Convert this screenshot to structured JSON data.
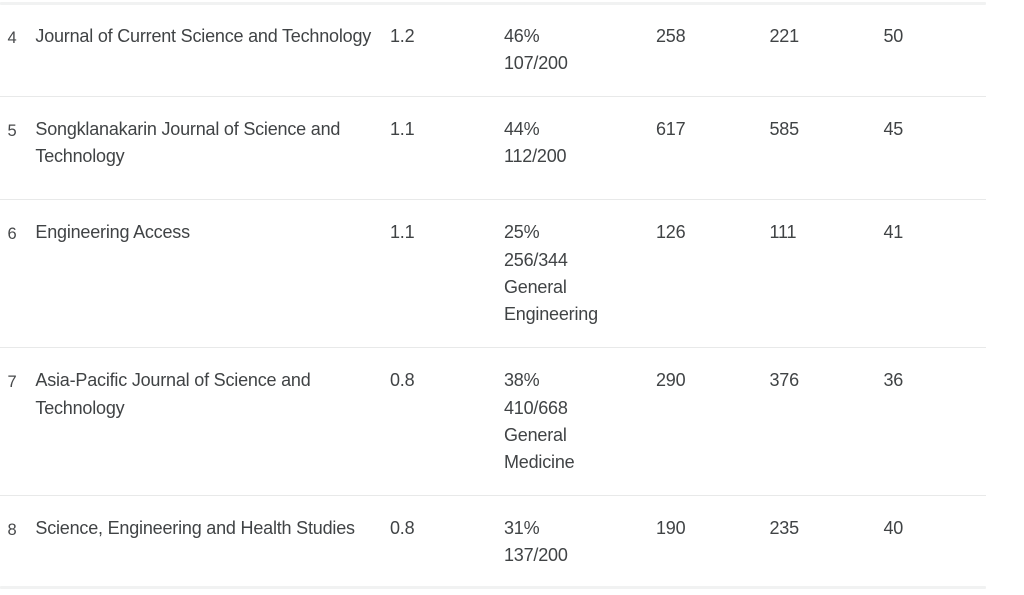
{
  "table": {
    "rows": [
      {
        "rank": "4",
        "title": "Journal of Current Science and Technology",
        "score": "1.2",
        "percent": "46%",
        "fraction": "107/200",
        "category": "",
        "n1": "258",
        "n2": "221",
        "n3": "50"
      },
      {
        "rank": "5",
        "title": "Songklanakarin Journal of Science and Technology",
        "score": "1.1",
        "percent": "44%",
        "fraction": "112/200",
        "category": "",
        "n1": "617",
        "n2": "585",
        "n3": "45"
      },
      {
        "rank": "6",
        "title": "Engineering Access",
        "score": "1.1",
        "percent": "25%",
        "fraction": "256/344",
        "category": "General Engineering",
        "n1": "126",
        "n2": "111",
        "n3": "41"
      },
      {
        "rank": "7",
        "title": "Asia-Pacific Journal of Science and Technology",
        "score": "0.8",
        "percent": "38%",
        "fraction": "410/668",
        "category": "General Medicine",
        "n1": "290",
        "n2": "376",
        "n3": "36"
      },
      {
        "rank": "8",
        "title": "Science, Engineering and Health Studies",
        "score": "0.8",
        "percent": "31%",
        "fraction": "137/200",
        "category": "",
        "n1": "190",
        "n2": "235",
        "n3": "40"
      }
    ]
  }
}
